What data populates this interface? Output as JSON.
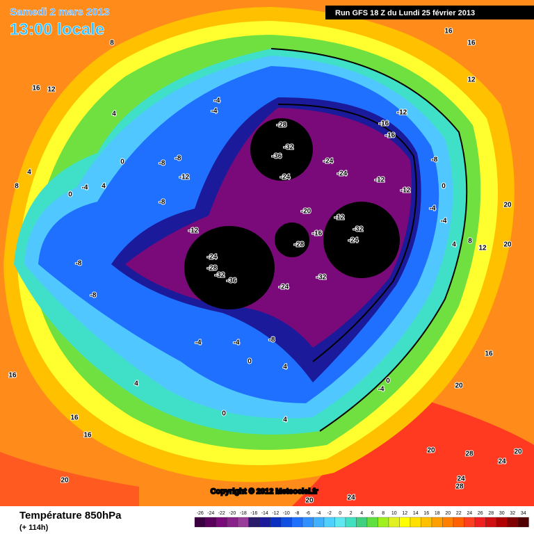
{
  "header": {
    "date": "Samedi 2 mars 2013",
    "time": "13:00 locale",
    "run": "Run GFS 18 Z du Lundi 25 février 2013"
  },
  "copyright": "Copyright © 2012 Meteociel.fr",
  "footer": {
    "title": "Température 850hPa",
    "lead": "(+ 114h)"
  },
  "legend": {
    "ticks": [
      -26,
      -24,
      -22,
      -20,
      -18,
      -16,
      -14,
      -12,
      -10,
      -8,
      -6,
      -4,
      -2,
      0,
      2,
      4,
      6,
      8,
      10,
      12,
      14,
      16,
      18,
      20,
      22,
      24,
      26,
      28,
      30,
      32,
      34
    ],
    "colors": [
      "#3a0040",
      "#5a005a",
      "#7a0a7a",
      "#8a208a",
      "#9a3c9a",
      "#2a1a6a",
      "#1a1a9a",
      "#0a30c0",
      "#1050e0",
      "#2070ff",
      "#3090ff",
      "#40b0ff",
      "#50d0ff",
      "#60e8f0",
      "#40e0c0",
      "#40d080",
      "#60e040",
      "#a0f020",
      "#e0f020",
      "#ffff00",
      "#ffe000",
      "#ffc000",
      "#ffa000",
      "#ff8000",
      "#ff6000",
      "#ff4020",
      "#f02020",
      "#d01010",
      "#b00000",
      "#800000",
      "#500000"
    ]
  },
  "contour_labels": [
    -28,
    -32,
    -36,
    -24,
    -24,
    -24,
    -12,
    -16,
    -16,
    -12,
    -12,
    -20,
    -16,
    -28,
    -12,
    -32,
    -24,
    -32,
    -24,
    -24,
    -28,
    -32,
    -36,
    -8,
    -8,
    -12,
    -8,
    -12,
    -8,
    -8,
    -4,
    -4,
    -4,
    -4,
    -8,
    0,
    4,
    0,
    4,
    -4,
    0,
    -8,
    0,
    -4,
    -4,
    4,
    8,
    12,
    20,
    20,
    16,
    16,
    12,
    16,
    12,
    4,
    8,
    16,
    16,
    16,
    20,
    20,
    24,
    20,
    28,
    24,
    28,
    24,
    20,
    16,
    20,
    4,
    4,
    8,
    0,
    0,
    4,
    -4
  ]
}
